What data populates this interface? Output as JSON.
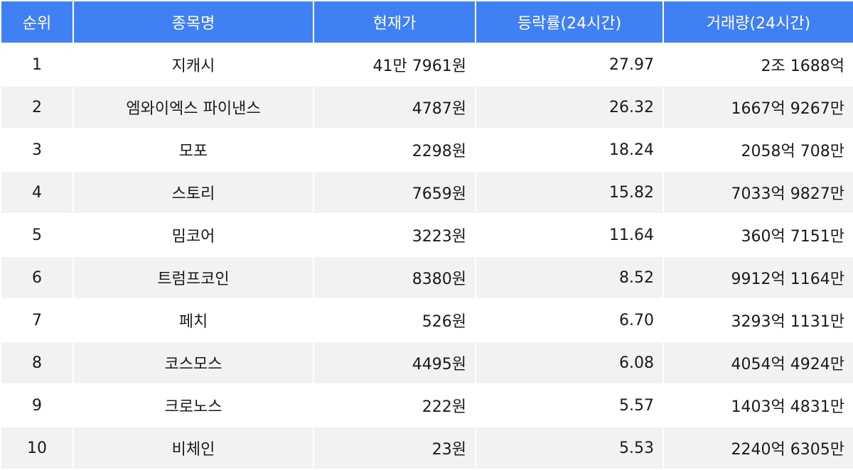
{
  "table": {
    "header_color": "#4080f5",
    "columns": [
      "순위",
      "종목명",
      "현재가",
      "등락률(24시간)",
      "거래량(24시간)"
    ],
    "rows": [
      [
        "1",
        "지캐시",
        "41만 7961원",
        "27.97",
        "2조 1688억"
      ],
      [
        "2",
        "엠와이엑스 파이낸스",
        "4787원",
        "26.32",
        "1667억 9267만"
      ],
      [
        "3",
        "모포",
        "2298원",
        "18.24",
        "2058억 708만"
      ],
      [
        "4",
        "스토리",
        "7659원",
        "15.82",
        "7033억 9827만"
      ],
      [
        "5",
        "밈코어",
        "3223원",
        "11.64",
        "360억 7151만"
      ],
      [
        "6",
        "트럼프코인",
        "8380원",
        "8.52",
        "9912억 1164만"
      ],
      [
        "7",
        "페치",
        "526원",
        "6.70",
        "3293억 1131만"
      ],
      [
        "8",
        "코스모스",
        "4495원",
        "6.08",
        "4054억 4924만"
      ],
      [
        "9",
        "크로노스",
        "222원",
        "5.57",
        "1403억 4831만"
      ],
      [
        "10",
        "비체인",
        "23원",
        "5.53",
        "2240억 6305만"
      ]
    ]
  }
}
